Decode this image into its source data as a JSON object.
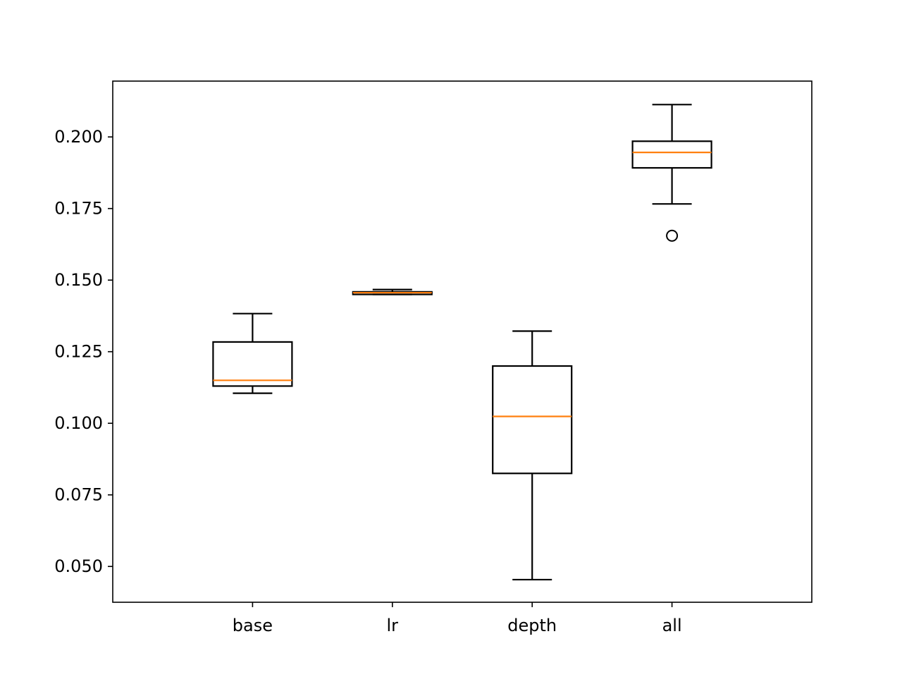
{
  "chart_data": {
    "type": "boxplot",
    "title": "",
    "xlabel": "",
    "ylabel": "",
    "ylim": [
      0.0375,
      0.2195
    ],
    "yticks": [
      0.05,
      0.075,
      0.1,
      0.125,
      0.15,
      0.175,
      0.2
    ],
    "ytick_labels": [
      "0.050",
      "0.075",
      "0.100",
      "0.125",
      "0.150",
      "0.175",
      "0.200"
    ],
    "grid": false,
    "categories": [
      "base",
      "lr",
      "depth",
      "all"
    ],
    "boxes": [
      {
        "label": "base",
        "whisker_low": 0.1105,
        "q1": 0.113,
        "median": 0.115,
        "q3": 0.1284,
        "whisker_high": 0.1383,
        "outliers": []
      },
      {
        "label": "lr",
        "whisker_low": 0.145,
        "q1": 0.145,
        "median": 0.1456,
        "q3": 0.1459,
        "whisker_high": 0.1467,
        "outliers": []
      },
      {
        "label": "depth",
        "whisker_low": 0.0454,
        "q1": 0.0825,
        "median": 0.1024,
        "q3": 0.12,
        "whisker_high": 0.1322,
        "outliers": []
      },
      {
        "label": "all",
        "whisker_low": 0.1766,
        "q1": 0.1892,
        "median": 0.1946,
        "q3": 0.1985,
        "whisker_high": 0.2113,
        "outliers": [
          0.1655
        ]
      }
    ],
    "colors": {
      "box": "#000000",
      "median": "#ff7f0e",
      "axes": "#000000"
    }
  }
}
